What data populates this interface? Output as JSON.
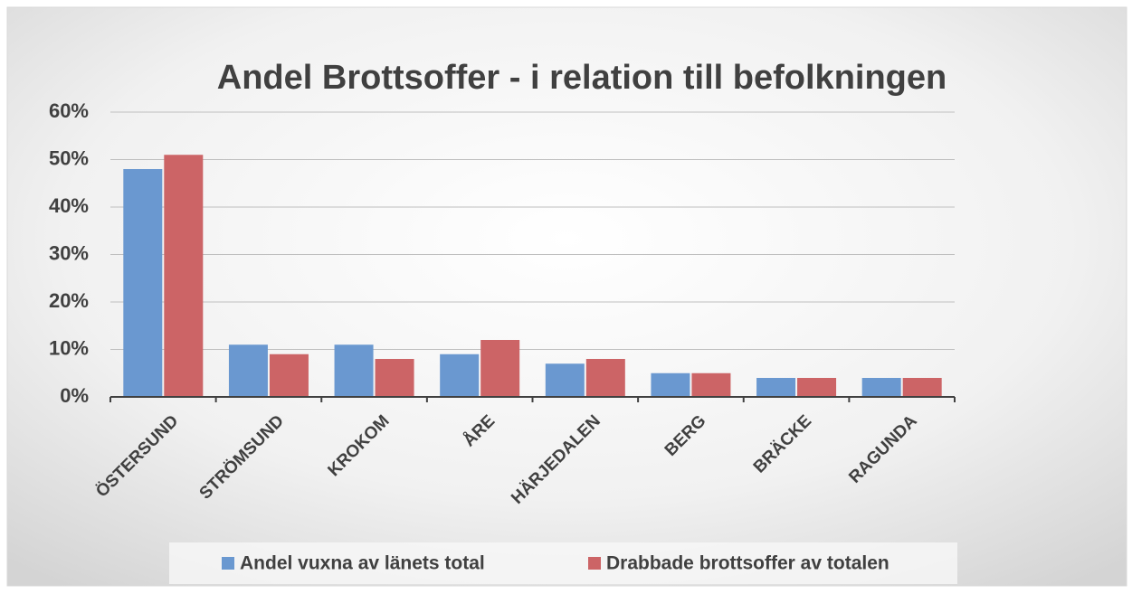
{
  "chart_data": {
    "type": "bar",
    "title": "Andel Brottsoffer - i relation till befolkningen",
    "categories": [
      "ÖSTERSUND",
      "STRÖMSUND",
      "KROKOM",
      "ÅRE",
      "HÄRJEDALEN",
      "BERG",
      "BRÄCKE",
      "RAGUNDA"
    ],
    "series": [
      {
        "name": "Andel vuxna av länets total",
        "color": "#6a98d0",
        "values": [
          48,
          11,
          11,
          9,
          7,
          5,
          4,
          4
        ]
      },
      {
        "name": "Drabbade brottsoffer av totalen",
        "color": "#cc6466",
        "values": [
          51,
          9,
          8,
          12,
          8,
          5,
          4,
          4
        ]
      }
    ],
    "ylim": [
      0,
      60
    ],
    "yticks": [
      {
        "value": 0,
        "label": "0%"
      },
      {
        "value": 10,
        "label": "10%"
      },
      {
        "value": 20,
        "label": "20%"
      },
      {
        "value": 30,
        "label": "30%"
      },
      {
        "value": 40,
        "label": "40%"
      },
      {
        "value": 50,
        "label": "50%"
      },
      {
        "value": 60,
        "label": "60%"
      }
    ],
    "grid": true,
    "legend": "bottom"
  }
}
